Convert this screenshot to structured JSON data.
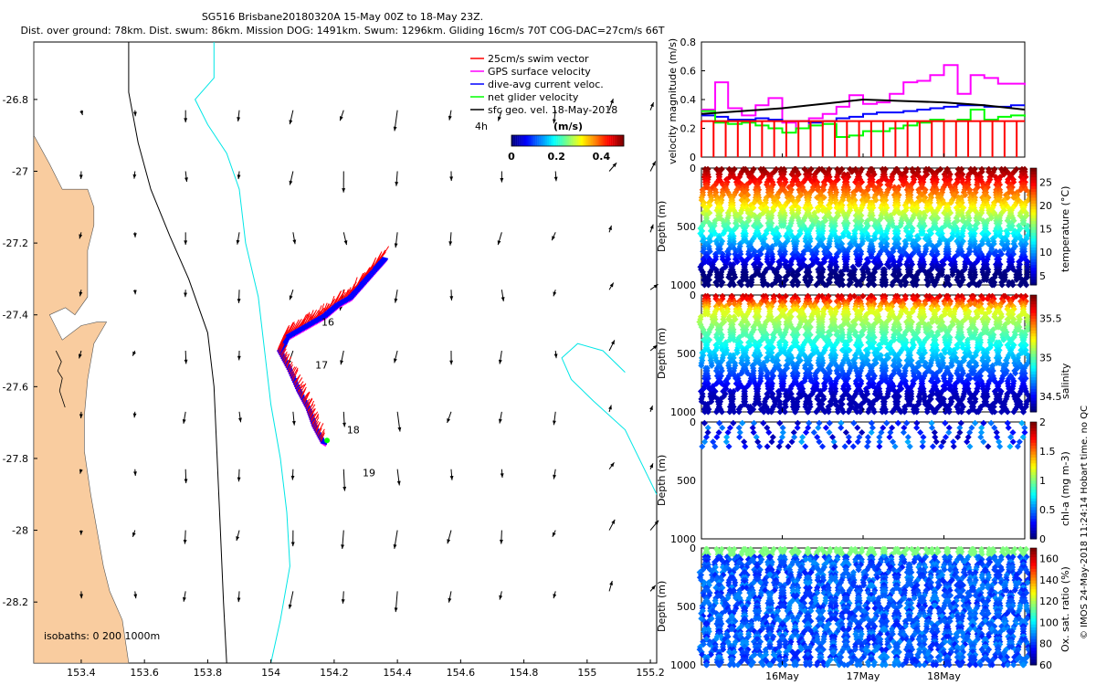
{
  "title": {
    "line1": "SG516 Brisbane20180320A 15-May 00Z to 18-May 23Z.",
    "line2": "Dist. over ground: 78km. Dist. swum: 86km. Mission DOG: 1491km. Swum: 1296km. Gliding 16cm/s 70T COG-DAC=27cm/s 66T"
  },
  "colors": {
    "land": "#f9cc9f",
    "isobath_200": "#000000",
    "isobath_1000": "#00e6e6",
    "swim": "#ff0000",
    "gps": "#ff00ff",
    "dac": "#0000ff",
    "net": "#00ff00",
    "geo": "#000000"
  },
  "map": {
    "xlim": [
      153.25,
      155.22
    ],
    "ylim": [
      -28.37,
      -26.64
    ],
    "x_ticks": [
      "153.4",
      "153.6",
      "153.8",
      "154",
      "154.2",
      "154.4",
      "154.6",
      "154.8",
      "155",
      "155.2"
    ],
    "y_ticks": [
      "-26.8",
      "-27",
      "-27.2",
      "-27.4",
      "-27.6",
      "-27.8",
      "-28",
      "-28.2"
    ],
    "legend": [
      {
        "label": "25cm/s swim vector",
        "color": "#ff0000"
      },
      {
        "label": "GPS surface velocity",
        "color": "#ff00ff"
      },
      {
        "label": "dive-avg current veloc.",
        "color": "#0000ff"
      },
      {
        "label": "net glider velocity",
        "color": "#00ff00"
      },
      {
        "label": "sfc geo. vel. 18-May-2018",
        "color": "#000000"
      }
    ],
    "interval_label": "4h",
    "colorbar": {
      "title": "(m/s)",
      "ticks": [
        "0",
        "0.2",
        "0.4"
      ],
      "range": [
        0,
        0.5
      ]
    },
    "isobath_label": "isobaths: 0   200  1000m",
    "day_labels": [
      {
        "text": "16",
        "lon": 154.16,
        "lat": -27.43
      },
      {
        "text": "17",
        "lon": 154.14,
        "lat": -27.55
      },
      {
        "text": "18",
        "lon": 154.24,
        "lat": -27.73
      },
      {
        "text": "19",
        "lon": 154.29,
        "lat": -27.85
      }
    ]
  },
  "panels": {
    "velocity": {
      "ylabel": "velocity magnitude (m/s)",
      "yticks": [
        "0",
        "0.2",
        "0.4",
        "0.6",
        "0.8"
      ],
      "ylim": [
        0,
        0.8
      ]
    },
    "temperature": {
      "ylabel": "Depth (m)",
      "cblabel": "temperature (°C)",
      "cbticks": [
        "5",
        "10",
        "15",
        "20",
        "25"
      ],
      "cbrange": [
        3,
        28
      ],
      "yticks": [
        "0",
        "500",
        "1000"
      ]
    },
    "salinity": {
      "ylabel": "Depth (m)",
      "cblabel": "salinity",
      "cbticks": [
        "34.5",
        "35",
        "35.5"
      ],
      "cbrange": [
        34.3,
        35.8
      ],
      "yticks": [
        "0",
        "500",
        "1000"
      ]
    },
    "chla": {
      "ylabel": "Depth (m)",
      "cblabel": "chl-a (mg m-3)",
      "cbticks": [
        "0",
        "0.5",
        "1",
        "1.5",
        "2"
      ],
      "cbrange": [
        0,
        2
      ],
      "yticks": [
        "0",
        "500",
        "1000"
      ]
    },
    "oxygen": {
      "ylabel": "Depth (m)",
      "cblabel": "Ox. sat. ratio (%)",
      "cbticks": [
        "60",
        "80",
        "100",
        "120",
        "140",
        "160"
      ],
      "cbrange": [
        60,
        170
      ],
      "yticks": [
        "0",
        "500",
        "1000"
      ]
    },
    "x_ticks": [
      "16May",
      "17May",
      "18May"
    ],
    "credit": "© IMOS 24-May-2018 11:24:14 Hobart time. no QC"
  },
  "chart_data": [
    {
      "type": "scatter",
      "title": "SG516 Brisbane20180320A 15-May 00Z to 18-May 23Z.",
      "xlabel": "",
      "ylabel": "",
      "xlim": [
        153.25,
        155.22
      ],
      "ylim": [
        -28.37,
        -26.64
      ],
      "track": [
        [
          154.35,
          -27.24
        ],
        [
          154.32,
          -27.27
        ],
        [
          154.28,
          -27.31
        ],
        [
          154.24,
          -27.35
        ],
        [
          154.2,
          -27.37
        ],
        [
          154.16,
          -27.4
        ],
        [
          154.12,
          -27.42
        ],
        [
          154.08,
          -27.44
        ],
        [
          154.04,
          -27.46
        ],
        [
          154.02,
          -27.5
        ],
        [
          154.05,
          -27.55
        ],
        [
          154.08,
          -27.61
        ],
        [
          154.11,
          -27.66
        ],
        [
          154.13,
          -27.71
        ],
        [
          154.16,
          -27.76
        ]
      ],
      "geo_grid": {
        "lons": [
          153.4,
          153.57,
          153.73,
          153.9,
          154.07,
          154.23,
          154.4,
          154.57,
          154.73,
          154.9,
          155.07,
          155.2
        ],
        "lats": [
          -26.83,
          -27.0,
          -27.17,
          -27.33,
          -27.5,
          -27.67,
          -27.83,
          -28.0,
          -28.17
        ]
      }
    },
    {
      "type": "line",
      "ylabel": "velocity magnitude (m/s)",
      "xlim": [
        15.0,
        19.0
      ],
      "ylim": [
        0,
        0.8
      ],
      "series": [
        {
          "name": "GPS surface velocity",
          "color": "#ff00ff",
          "x": [
            15.0,
            15.17,
            15.33,
            15.5,
            15.67,
            15.83,
            16.0,
            16.17,
            16.33,
            16.5,
            16.67,
            16.83,
            17.0,
            17.17,
            17.33,
            17.5,
            17.67,
            17.83,
            18.0,
            18.17,
            18.33,
            18.5,
            18.67,
            18.83,
            19.0
          ],
          "values": [
            0.33,
            0.52,
            0.34,
            0.29,
            0.36,
            0.41,
            0.24,
            0.2,
            0.27,
            0.3,
            0.35,
            0.43,
            0.37,
            0.38,
            0.44,
            0.52,
            0.53,
            0.57,
            0.64,
            0.44,
            0.57,
            0.55,
            0.51,
            0.51,
            0.5
          ]
        },
        {
          "name": "dive-avg current veloc.",
          "color": "#0000ff",
          "x": [
            15.0,
            15.17,
            15.33,
            15.5,
            15.67,
            15.83,
            16.0,
            16.17,
            16.33,
            16.5,
            16.67,
            16.83,
            17.0,
            17.17,
            17.33,
            17.5,
            17.67,
            17.83,
            18.0,
            18.17,
            18.33,
            18.5,
            18.67,
            18.83,
            19.0
          ],
          "values": [
            0.29,
            0.28,
            0.26,
            0.26,
            0.27,
            0.26,
            0.25,
            0.25,
            0.24,
            0.25,
            0.27,
            0.28,
            0.3,
            0.31,
            0.31,
            0.32,
            0.33,
            0.34,
            0.35,
            0.36,
            0.36,
            0.35,
            0.35,
            0.36,
            0.36
          ]
        },
        {
          "name": "net glider velocity",
          "color": "#00ff00",
          "x": [
            15.0,
            15.17,
            15.33,
            15.5,
            15.67,
            15.83,
            16.0,
            16.17,
            16.33,
            16.5,
            16.67,
            16.83,
            17.0,
            17.17,
            17.33,
            17.5,
            17.67,
            17.83,
            18.0,
            18.17,
            18.33,
            18.5,
            18.67,
            18.83,
            19.0
          ],
          "values": [
            0.32,
            0.24,
            0.23,
            0.24,
            0.22,
            0.2,
            0.17,
            0.2,
            0.22,
            0.23,
            0.14,
            0.15,
            0.18,
            0.18,
            0.2,
            0.22,
            0.24,
            0.26,
            0.25,
            0.26,
            0.33,
            0.26,
            0.28,
            0.29,
            0.28
          ]
        },
        {
          "name": "sfc geo. vel. 18-May-2018",
          "color": "#000000",
          "x": [
            15.0,
            15.5,
            16.0,
            16.5,
            17.0,
            17.5,
            18.0,
            18.5,
            19.0
          ],
          "values": [
            0.3,
            0.32,
            0.34,
            0.37,
            0.4,
            0.39,
            0.38,
            0.36,
            0.33
          ]
        },
        {
          "name": "25cm/s swim vector",
          "color": "#ff0000",
          "x": [
            15.0,
            19.0
          ],
          "values": [
            0.25,
            0.25
          ]
        }
      ]
    },
    {
      "type": "scatter",
      "ylabel": "Depth (m)",
      "colorbar_label": "temperature (°C)",
      "xlim": [
        15.0,
        19.0
      ],
      "ylim": [
        1000,
        0
      ],
      "color_range": [
        3,
        28
      ],
      "profile_count": 26,
      "surface_value": 26,
      "deep_value": 5
    },
    {
      "type": "scatter",
      "ylabel": "Depth (m)",
      "colorbar_label": "salinity",
      "xlim": [
        15.0,
        19.0
      ],
      "ylim": [
        1000,
        0
      ],
      "color_range": [
        34.3,
        35.8
      ],
      "profile_count": 26
    },
    {
      "type": "scatter",
      "ylabel": "Depth (m)",
      "colorbar_label": "chl-a (mg m-3)",
      "xlim": [
        15.0,
        19.0
      ],
      "ylim": [
        1000,
        0
      ],
      "color_range": [
        0,
        2
      ],
      "profile_count": 26,
      "max_depth": 200
    },
    {
      "type": "scatter",
      "ylabel": "Depth (m)",
      "colorbar_label": "Ox. sat. ratio (%)",
      "xlim": [
        15.0,
        19.0
      ],
      "ylim": [
        1000,
        0
      ],
      "color_range": [
        60,
        170
      ],
      "profile_count": 26
    }
  ]
}
